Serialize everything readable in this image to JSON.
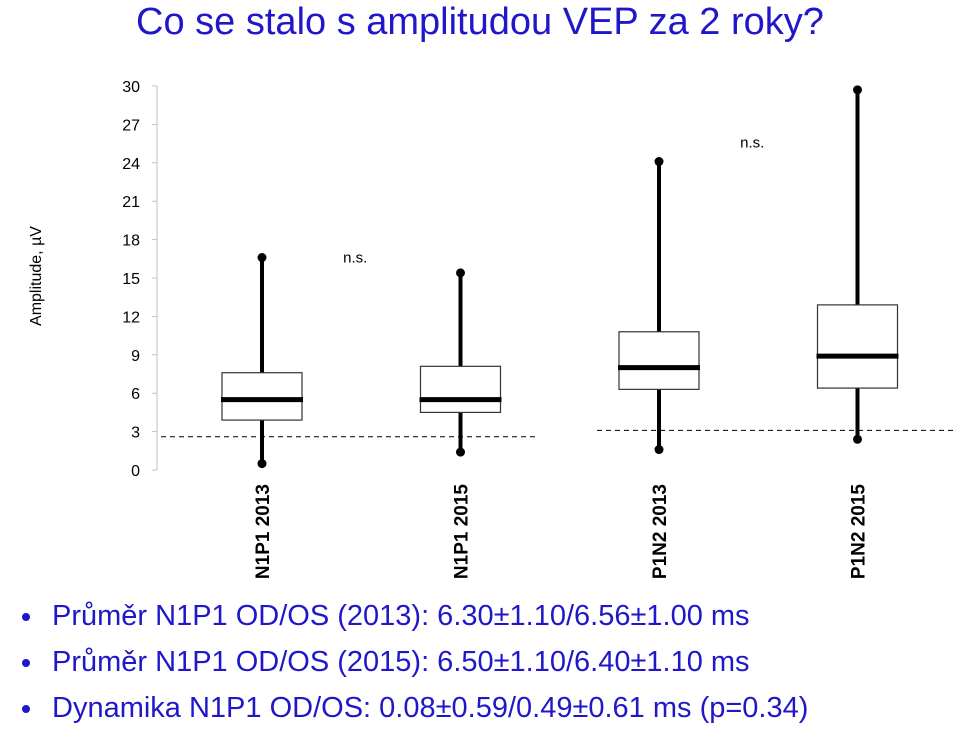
{
  "title": "Co se stalo s amplitudou VEP za 2 roky?",
  "bullets": [
    "Průměr N1P1 OD/OS (2013): 6.30±1.10/6.56±1.00 ms",
    "Průměr N1P1 OD/OS (2015): 6.50±1.10/6.40±1.10 ms",
    "Dynamika N1P1 OD/OS: 0.08±0.59/0.49±0.61 ms (p=0.34)"
  ],
  "colors": {
    "title": "#1f17c8",
    "marks": "#000000",
    "axis": "#bfbfbf"
  },
  "chart_data": {
    "type": "box",
    "ylabel": "Amplitude, µV",
    "ylim": [
      0,
      30
    ],
    "yticks": [
      0,
      3,
      6,
      9,
      12,
      15,
      18,
      21,
      24,
      27,
      30
    ],
    "grid": false,
    "categories": [
      "N1P1 2013",
      "N1P1 2015",
      "P1N2 2013",
      "P1N2 2015"
    ],
    "boxes": [
      {
        "min": 0.5,
        "q1": 3.9,
        "median": 5.5,
        "q3": 7.6,
        "max": 16.6
      },
      {
        "min": 1.4,
        "q1": 4.5,
        "median": 5.5,
        "q3": 8.1,
        "max": 15.4
      },
      {
        "min": 1.6,
        "q1": 6.3,
        "median": 8.0,
        "q3": 10.8,
        "max": 24.1
      },
      {
        "min": 2.4,
        "q1": 6.4,
        "median": 8.9,
        "q3": 12.9,
        "max": 29.7
      }
    ],
    "reference_lines": [
      {
        "categories": [
          "N1P1 2013",
          "N1P1 2015"
        ],
        "y": 2.6
      },
      {
        "categories": [
          "P1N2 2013",
          "P1N2 2015"
        ],
        "y": 3.1
      }
    ],
    "annotations": [
      {
        "text": "n.s.",
        "between": [
          "N1P1 2013",
          "N1P1 2015"
        ],
        "y": 16.2
      },
      {
        "text": "n.s.",
        "between": [
          "P1N2 2013",
          "P1N2 2015"
        ],
        "y": 25.2
      }
    ]
  }
}
